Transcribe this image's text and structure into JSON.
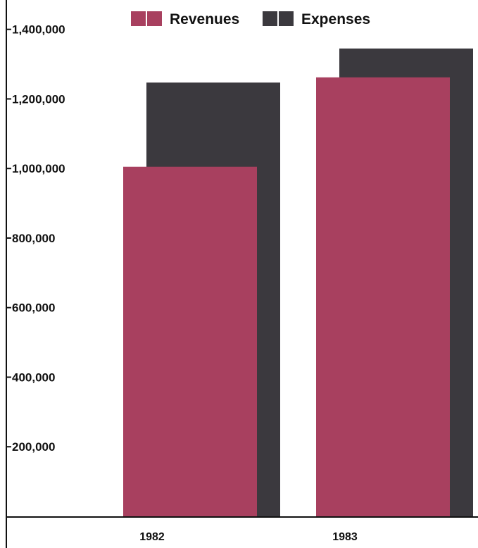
{
  "chart_data": {
    "type": "bar",
    "categories": [
      "1982",
      "1983"
    ],
    "series": [
      {
        "name": "Revenues",
        "values": [
          1005000,
          1262000
        ],
        "color": "#a8405f"
      },
      {
        "name": "Expenses",
        "values": [
          1247000,
          1345000
        ],
        "color": "#3b393e"
      }
    ],
    "ylim": [
      0,
      1450000
    ],
    "yticks": [
      200000,
      400000,
      600000,
      800000,
      1000000,
      1200000,
      1400000
    ],
    "ytick_labels": [
      "200,000",
      "400,000",
      "600,000",
      "800,000",
      "1,000,000",
      "1,200,000",
      "1,400,000"
    ],
    "legend_position": "top",
    "grid": false,
    "title": "",
    "xlabel": "",
    "ylabel": ""
  }
}
